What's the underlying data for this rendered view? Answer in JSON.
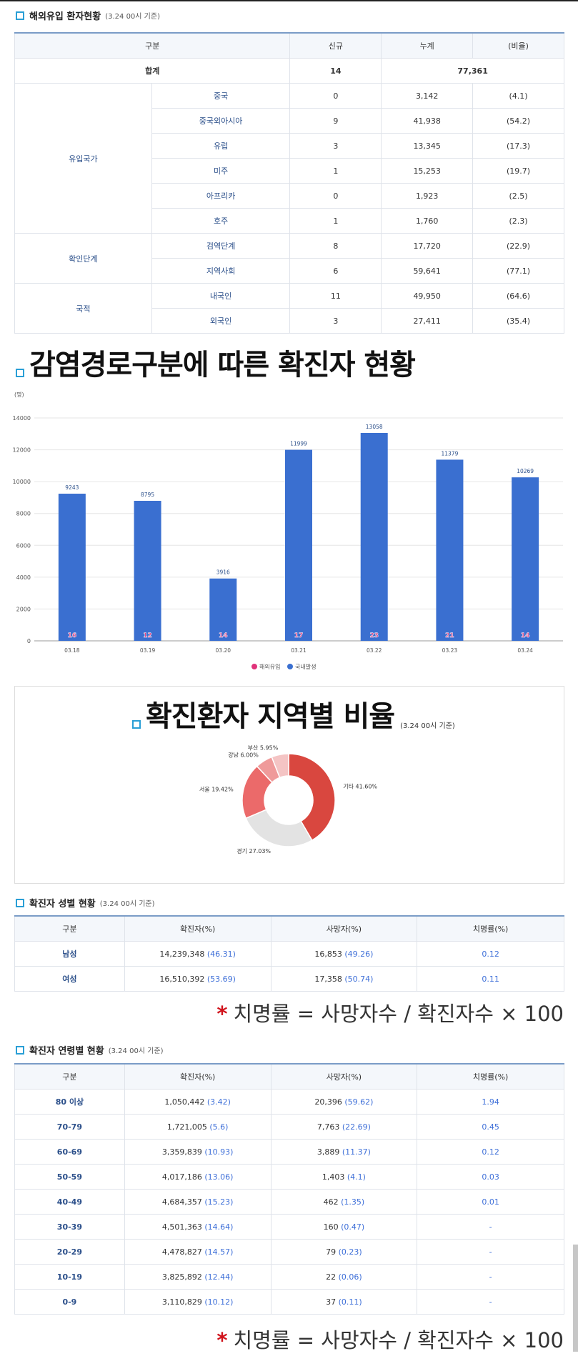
{
  "overseas": {
    "title": "해외유입 환자현황",
    "subtitle": "(3.24 00시 기준)",
    "headers": [
      "구분",
      "신규",
      "누계",
      "(비율)"
    ],
    "total": {
      "label": "합계",
      "new": "14",
      "cumulative": "77,361"
    },
    "groups": [
      {
        "label": "유입국가",
        "rows": [
          {
            "label": "중국",
            "new": "0",
            "cum": "3,142",
            "ratio": "(4.1)"
          },
          {
            "label": "중국외아시아",
            "new": "9",
            "cum": "41,938",
            "ratio": "(54.2)"
          },
          {
            "label": "유럽",
            "new": "3",
            "cum": "13,345",
            "ratio": "(17.3)"
          },
          {
            "label": "미주",
            "new": "1",
            "cum": "15,253",
            "ratio": "(19.7)"
          },
          {
            "label": "아프리카",
            "new": "0",
            "cum": "1,923",
            "ratio": "(2.5)"
          },
          {
            "label": "호주",
            "new": "1",
            "cum": "1,760",
            "ratio": "(2.3)"
          }
        ]
      },
      {
        "label": "확인단계",
        "rows": [
          {
            "label": "검역단계",
            "new": "8",
            "cum": "17,720",
            "ratio": "(22.9)"
          },
          {
            "label": "지역사회",
            "new": "6",
            "cum": "59,641",
            "ratio": "(77.1)"
          }
        ]
      },
      {
        "label": "국적",
        "rows": [
          {
            "label": "내국인",
            "new": "11",
            "cum": "49,950",
            "ratio": "(64.6)"
          },
          {
            "label": "외국인",
            "new": "3",
            "cum": "27,411",
            "ratio": "(35.4)"
          }
        ]
      }
    ]
  },
  "route_chart": {
    "title": "감염경로구분에 따른 확진자 현황",
    "unit": "(명)"
  },
  "chart_data": {
    "type": "bar",
    "categories": [
      "03.18",
      "03.19",
      "03.20",
      "03.21",
      "03.22",
      "03.23",
      "03.24"
    ],
    "series": [
      {
        "name": "해외유입",
        "values": [
          16,
          12,
          14,
          17,
          23,
          21,
          14
        ],
        "color": "#e0327a"
      },
      {
        "name": "국내발생",
        "values": [
          9243,
          8795,
          3916,
          11999,
          13058,
          11379,
          10269
        ],
        "color": "#3a6fd0"
      }
    ],
    "ylim": [
      0,
      14000
    ],
    "yticks": [
      "0",
      "2000",
      "4000",
      "6000",
      "8000",
      "10000",
      "12000",
      "14000"
    ],
    "legend": "bottom",
    "grid": true
  },
  "region": {
    "title": "확진환자 지역별 비율",
    "subtitle": "(3.24 00시 기준)",
    "slices": [
      {
        "label": "기타 41.60%",
        "value": 41.6,
        "color": "#d9473f"
      },
      {
        "label": "경기 27.03%",
        "value": 27.03,
        "color": "#e3e3e3"
      },
      {
        "label": "서울 19.42%",
        "value": 19.42,
        "color": "#eb6a6a"
      },
      {
        "label": "강남 6.00%",
        "value": 6.0,
        "color": "#ef9a9a"
      },
      {
        "label": "부산 5.95%",
        "value": 5.95,
        "color": "#f4c4c4"
      }
    ]
  },
  "gender": {
    "title": "확진자 성별 현황",
    "subtitle": "(3.24 00시 기준)",
    "headers": [
      "구분",
      "확진자(%)",
      "사망자(%)",
      "치명률(%)"
    ],
    "rows": [
      {
        "label": "남성",
        "cases": "14,239,348",
        "cases_pct": "(46.31)",
        "deaths": "16,853",
        "deaths_pct": "(49.26)",
        "cfr": "0.12"
      },
      {
        "label": "여성",
        "cases": "16,510,392",
        "cases_pct": "(53.69)",
        "deaths": "17,358",
        "deaths_pct": "(50.74)",
        "cfr": "0.11"
      }
    ]
  },
  "formula": {
    "star": "*",
    "text": "치명률 = 사망자수 / 확진자수 × 100"
  },
  "age": {
    "title": "확진자 연령별 현황",
    "subtitle": "(3.24 00시 기준)",
    "headers": [
      "구분",
      "확진자(%)",
      "사망자(%)",
      "치명률(%)"
    ],
    "rows": [
      {
        "label": "80 이상",
        "cases": "1,050,442",
        "cases_pct": "(3.42)",
        "deaths": "20,396",
        "deaths_pct": "(59.62)",
        "cfr": "1.94"
      },
      {
        "label": "70-79",
        "cases": "1,721,005",
        "cases_pct": "(5.6)",
        "deaths": "7,763",
        "deaths_pct": "(22.69)",
        "cfr": "0.45"
      },
      {
        "label": "60-69",
        "cases": "3,359,839",
        "cases_pct": "(10.93)",
        "deaths": "3,889",
        "deaths_pct": "(11.37)",
        "cfr": "0.12"
      },
      {
        "label": "50-59",
        "cases": "4,017,186",
        "cases_pct": "(13.06)",
        "deaths": "1,403",
        "deaths_pct": "(4.1)",
        "cfr": "0.03"
      },
      {
        "label": "40-49",
        "cases": "4,684,357",
        "cases_pct": "(15.23)",
        "deaths": "462",
        "deaths_pct": "(1.35)",
        "cfr": "0.01"
      },
      {
        "label": "30-39",
        "cases": "4,501,363",
        "cases_pct": "(14.64)",
        "deaths": "160",
        "deaths_pct": "(0.47)",
        "cfr": "-"
      },
      {
        "label": "20-29",
        "cases": "4,478,827",
        "cases_pct": "(14.57)",
        "deaths": "79",
        "deaths_pct": "(0.23)",
        "cfr": "-"
      },
      {
        "label": "10-19",
        "cases": "3,825,892",
        "cases_pct": "(12.44)",
        "deaths": "22",
        "deaths_pct": "(0.06)",
        "cfr": "-"
      },
      {
        "label": "0-9",
        "cases": "3,110,829",
        "cases_pct": "(10.12)",
        "deaths": "37",
        "deaths_pct": "(0.11)",
        "cfr": "-"
      }
    ]
  }
}
